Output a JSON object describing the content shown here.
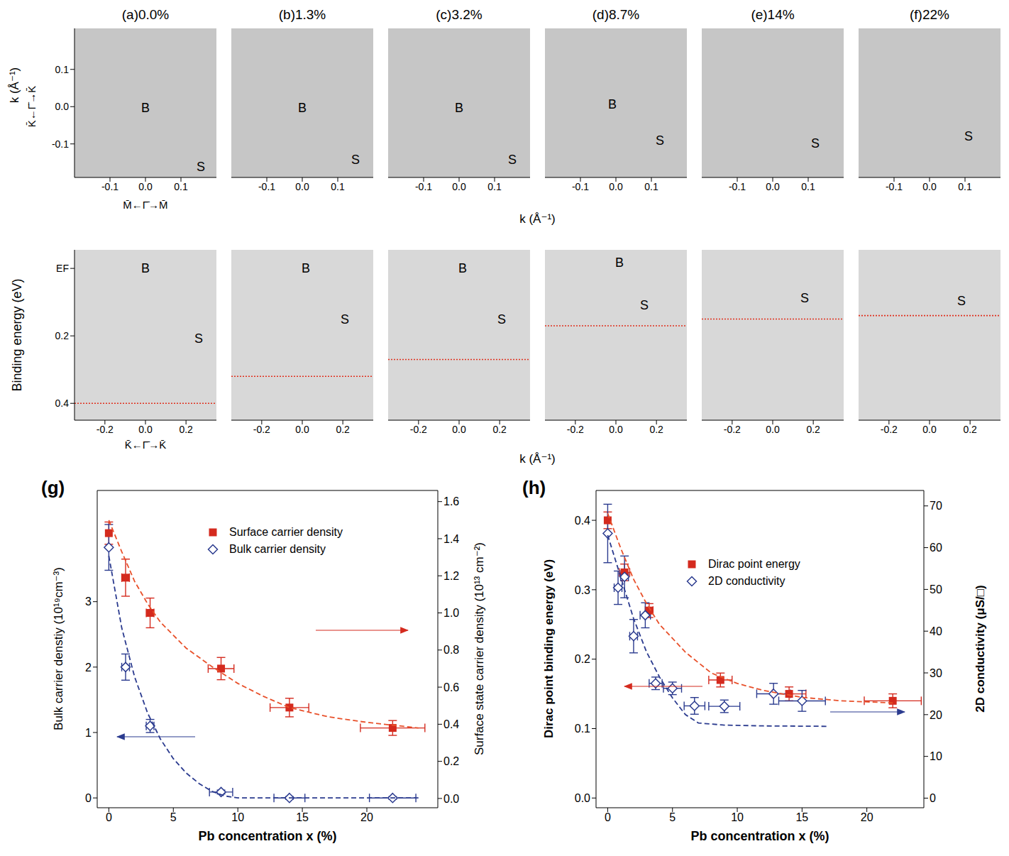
{
  "chart_data": [
    {
      "type": "image",
      "title": "(a)0.0%",
      "xlim": [
        -0.2,
        0.2
      ],
      "xticks": [
        -0.1,
        {
          "value": 0,
          "label": "0.0"
        },
        0.1
      ],
      "ylim": [
        -0.19,
        0.21
      ],
      "yticks": [
        0.1,
        {
          "value": 0,
          "label": "0.0"
        },
        -0.1
      ],
      "ylabel": "k (Å⁻¹)",
      "y_direction_label": "K̄←Γ̄→K̄",
      "x_direction_label": "M̄←Γ̄→M̄",
      "annotations": [
        "B",
        "S"
      ]
    },
    {
      "type": "image",
      "title": "(b)1.3%",
      "xlim": [
        -0.2,
        0.2
      ],
      "xticks": [
        -0.1,
        {
          "value": 0,
          "label": "0.0"
        },
        0.1
      ],
      "ylim": [
        -0.19,
        0.21
      ],
      "yticks": [
        0.1,
        {
          "value": 0,
          "label": "0.0"
        },
        -0.1
      ],
      "tick_labels": "x",
      "annotations": [
        "B",
        "S"
      ]
    },
    {
      "type": "image",
      "title": "(c)3.2%",
      "xlim": [
        -0.2,
        0.2
      ],
      "xticks": [
        -0.1,
        {
          "value": 0,
          "label": "0.0"
        },
        0.1
      ],
      "ylim": [
        -0.19,
        0.21
      ],
      "yticks": [
        0.1,
        {
          "value": 0,
          "label": "0.0"
        },
        -0.1
      ],
      "tick_labels": "x",
      "xlabel": "k (Å⁻¹)",
      "annotations": [
        "B",
        "S"
      ]
    },
    {
      "type": "image",
      "title": "(d)8.7%",
      "xlim": [
        -0.2,
        0.2
      ],
      "xticks": [
        -0.1,
        {
          "value": 0,
          "label": "0.0"
        },
        0.1
      ],
      "ylim": [
        -0.19,
        0.21
      ],
      "yticks": [
        0.1,
        {
          "value": 0,
          "label": "0.0"
        },
        -0.1
      ],
      "tick_labels": "x",
      "annotations": [
        "B",
        "S"
      ]
    },
    {
      "type": "image",
      "title": "(e)14%",
      "xlim": [
        -0.2,
        0.2
      ],
      "xticks": [
        -0.1,
        {
          "value": 0,
          "label": "0.0"
        },
        0.1
      ],
      "ylim": [
        -0.19,
        0.21
      ],
      "yticks": [
        0.1,
        {
          "value": 0,
          "label": "0.0"
        },
        -0.1
      ],
      "tick_labels": "x",
      "annotations": [
        "S"
      ]
    },
    {
      "type": "image",
      "title": "(f)22%",
      "xlim": [
        -0.2,
        0.2
      ],
      "xticks": [
        -0.1,
        {
          "value": 0,
          "label": "0.0"
        },
        0.1
      ],
      "ylim": [
        -0.19,
        0.21
      ],
      "yticks": [
        0.1,
        {
          "value": 0,
          "label": "0.0"
        },
        -0.1
      ],
      "tick_labels": "x",
      "annotations": [
        "S"
      ]
    },
    {
      "type": "image",
      "xlim": [
        -0.35,
        0.35
      ],
      "xticks": [
        -0.2,
        {
          "value": 0,
          "label": "0.0"
        },
        0.2
      ],
      "ylim": [
        -0.055,
        0.45
      ],
      "yticks": [
        {
          "value": 0,
          "label": "EF"
        },
        0.2,
        0.4
      ],
      "ylabel": "Binding energy (eV)",
      "x_direction_label": "K̄←Γ̄→K̄",
      "dirac_point_binding_energy": 0.4,
      "color": "#e0301e",
      "line_style": "dotted",
      "annotations": [
        "B",
        "S"
      ]
    },
    {
      "type": "image",
      "xlim": [
        -0.35,
        0.35
      ],
      "xticks": [
        -0.2,
        {
          "value": 0,
          "label": "0.0"
        },
        0.2
      ],
      "ylim": [
        -0.055,
        0.45
      ],
      "yticks": [
        {
          "value": 0,
          "label": "EF"
        },
        0.2,
        0.4
      ],
      "tick_labels": "x",
      "dirac_point_binding_energy": 0.32,
      "color": "#e0301e",
      "line_style": "dotted",
      "annotations": [
        "B",
        "S"
      ]
    },
    {
      "type": "image",
      "xlim": [
        -0.35,
        0.35
      ],
      "xticks": [
        -0.2,
        {
          "value": 0,
          "label": "0.0"
        },
        0.2
      ],
      "ylim": [
        -0.055,
        0.45
      ],
      "yticks": [
        {
          "value": 0,
          "label": "EF"
        },
        0.2,
        0.4
      ],
      "tick_labels": "x",
      "xlabel": "k (Å⁻¹)",
      "dirac_point_binding_energy": 0.27,
      "color": "#e0301e",
      "line_style": "dotted",
      "annotations": [
        "B",
        "S"
      ]
    },
    {
      "type": "image",
      "xlim": [
        -0.35,
        0.35
      ],
      "xticks": [
        -0.2,
        {
          "value": 0,
          "label": "0.0"
        },
        0.2
      ],
      "ylim": [
        -0.055,
        0.45
      ],
      "yticks": [
        {
          "value": 0,
          "label": "EF"
        },
        0.2,
        0.4
      ],
      "tick_labels": "x",
      "dirac_point_binding_energy": 0.17,
      "color": "#e0301e",
      "line_style": "dotted",
      "annotations": [
        "B",
        "S"
      ]
    },
    {
      "type": "image",
      "xlim": [
        -0.35,
        0.35
      ],
      "xticks": [
        -0.2,
        {
          "value": 0,
          "label": "0.0"
        },
        0.2
      ],
      "ylim": [
        -0.055,
        0.45
      ],
      "yticks": [
        {
          "value": 0,
          "label": "EF"
        },
        0.2,
        0.4
      ],
      "tick_labels": "x",
      "dirac_point_binding_energy": 0.15,
      "color": "#e0301e",
      "line_style": "dotted",
      "annotations": [
        "S"
      ]
    },
    {
      "type": "image",
      "xlim": [
        -0.35,
        0.35
      ],
      "xticks": [
        -0.2,
        {
          "value": 0,
          "label": "0.0"
        },
        0.2
      ],
      "ylim": [
        -0.055,
        0.45
      ],
      "yticks": [
        {
          "value": 0,
          "label": "EF"
        },
        0.2,
        0.4
      ],
      "tick_labels": "x",
      "dirac_point_binding_energy": 0.14,
      "color": "#e0301e",
      "line_style": "dotted",
      "annotations": [
        "S"
      ]
    },
    {
      "type": "scatter",
      "title": "(g)",
      "xlabel": "Pb concentration x (%)",
      "xlim": [
        -0.9,
        25.5
      ],
      "xticks": [
        0,
        5,
        10,
        15,
        20
      ],
      "ylabel": "Bulk carrier denstiy (10¹⁹cm⁻³)",
      "ylim": [
        -0.15,
        4.7
      ],
      "yticks": [
        0,
        1,
        2,
        3
      ],
      "y2label": "Surface state carrier density (10¹³ cm⁻²)",
      "y2lim": [
        -0.05,
        1.66
      ],
      "y2ticks": [
        {
          "value": 0,
          "label": "0.0"
        },
        0.2,
        0.4,
        0.6,
        0.8,
        {
          "value": 1,
          "label": "1.0"
        },
        1.2,
        1.4,
        1.6
      ],
      "legend": "upper right",
      "series": [
        {
          "name": "Surface carrier density",
          "color": "#d42a1e",
          "marker": "square",
          "axis": "y2",
          "x": [
            0,
            1.3,
            3.2,
            8.7,
            14,
            22
          ],
          "values": [
            1.43,
            1.19,
            1.0,
            0.7,
            0.49,
            0.38
          ],
          "x_err": [
            0,
            0.3,
            0.3,
            1,
            1.5,
            2.5
          ],
          "y_err": [
            0.06,
            0.1,
            0.08,
            0.06,
            0.05,
            0.04
          ]
        },
        {
          "name": "Bulk carrier density",
          "color": "#2b3b8f",
          "marker": "diamond",
          "axis": "y",
          "x": [
            0,
            1.3,
            3.2,
            8.7,
            14,
            22
          ],
          "values": [
            3.83,
            2.0,
            1.1,
            0.09,
            0.0,
            0.0
          ],
          "x_err": [
            0,
            0.3,
            0.3,
            0.9,
            1.2,
            1.8
          ],
          "y_err": [
            0.35,
            0.2,
            0.1,
            0.03,
            0.02,
            0.02
          ]
        },
        {
          "type": "line",
          "line_style": "dashed",
          "color": "#e8502a",
          "axis": "y2",
          "x": [
            0,
            1,
            2,
            3,
            4,
            6,
            8,
            10,
            12,
            14,
            17,
            20,
            24
          ],
          "values": [
            1.5,
            1.33,
            1.17,
            1.05,
            0.95,
            0.81,
            0.71,
            0.62,
            0.55,
            0.49,
            0.44,
            0.41,
            0.38
          ]
        },
        {
          "type": "line",
          "line_style": "dashed",
          "color": "#2b3b8f",
          "axis": "y",
          "x": [
            0,
            1,
            2,
            3,
            4,
            5,
            6,
            7,
            8,
            9,
            10,
            15,
            24
          ],
          "values": [
            3.7,
            2.6,
            1.85,
            1.3,
            0.9,
            0.6,
            0.38,
            0.22,
            0.1,
            0.03,
            0,
            0,
            0
          ]
        }
      ]
    },
    {
      "type": "scatter",
      "title": "(h)",
      "xlabel": "Pb concentration x (%)",
      "xlim": [
        -0.9,
        24.4
      ],
      "xticks": [
        0,
        5,
        10,
        15,
        20
      ],
      "ylabel": "Dirac point binding energy (eV)",
      "ylim": [
        -0.014,
        0.443
      ],
      "yticks": [
        {
          "value": 0,
          "label": "0.0"
        },
        0.1,
        0.2,
        0.3,
        0.4
      ],
      "y2label": "2D conductivity (μS/□)",
      "y2lim": [
        -2.3,
        73.7
      ],
      "y2ticks": [
        0,
        10,
        20,
        30,
        40,
        50,
        60,
        70
      ],
      "legend": "upper right",
      "series": [
        {
          "name": "Dirac point energy",
          "color": "#d42a1e",
          "marker": "square",
          "axis": "y",
          "x": [
            0,
            1.3,
            3.2,
            8.7,
            14,
            22
          ],
          "values": [
            0.4,
            0.325,
            0.27,
            0.17,
            0.15,
            0.14
          ],
          "x_err": [
            0,
            0.4,
            0.3,
            0.9,
            1.3,
            2.2
          ],
          "y_err": [
            0.012,
            0.012,
            0.01,
            0.01,
            0.01,
            0.01
          ]
        },
        {
          "name": "2D conductivity",
          "color": "#2b3b8f",
          "marker": "diamond",
          "axis": "y2",
          "x": [
            0,
            0.8,
            1.3,
            2.0,
            2.9,
            3.7,
            5.0,
            6.7,
            9.0,
            12.8,
            15.0
          ],
          "values": [
            63.4,
            50.4,
            53,
            38.8,
            43.8,
            27.5,
            26.3,
            22.1,
            22,
            25,
            23.3
          ],
          "x_err": [
            0,
            0.3,
            0.3,
            0.3,
            0.4,
            0.5,
            0.7,
            0.8,
            1.2,
            1.3,
            1.8
          ],
          "y_err": [
            7,
            4,
            5,
            4,
            3,
            1.5,
            1.5,
            2,
            1.5,
            2.5,
            2.5
          ]
        },
        {
          "type": "line",
          "line_style": "dashed",
          "color": "#e8502a",
          "axis": "y",
          "x": [
            0,
            1,
            2,
            3,
            4,
            6,
            8,
            10,
            12,
            15,
            18,
            22
          ],
          "values": [
            0.41,
            0.36,
            0.315,
            0.28,
            0.25,
            0.21,
            0.18,
            0.165,
            0.155,
            0.145,
            0.14,
            0.137
          ]
        },
        {
          "type": "line",
          "line_style": "dashed",
          "color": "#2b3b8f",
          "axis": "y2",
          "x": [
            0,
            1,
            2,
            3,
            4,
            5,
            6,
            7,
            9,
            12,
            17
          ],
          "values": [
            63,
            53,
            43,
            35,
            29,
            24,
            20,
            18,
            17.5,
            17.3,
            17.2
          ]
        }
      ]
    }
  ]
}
